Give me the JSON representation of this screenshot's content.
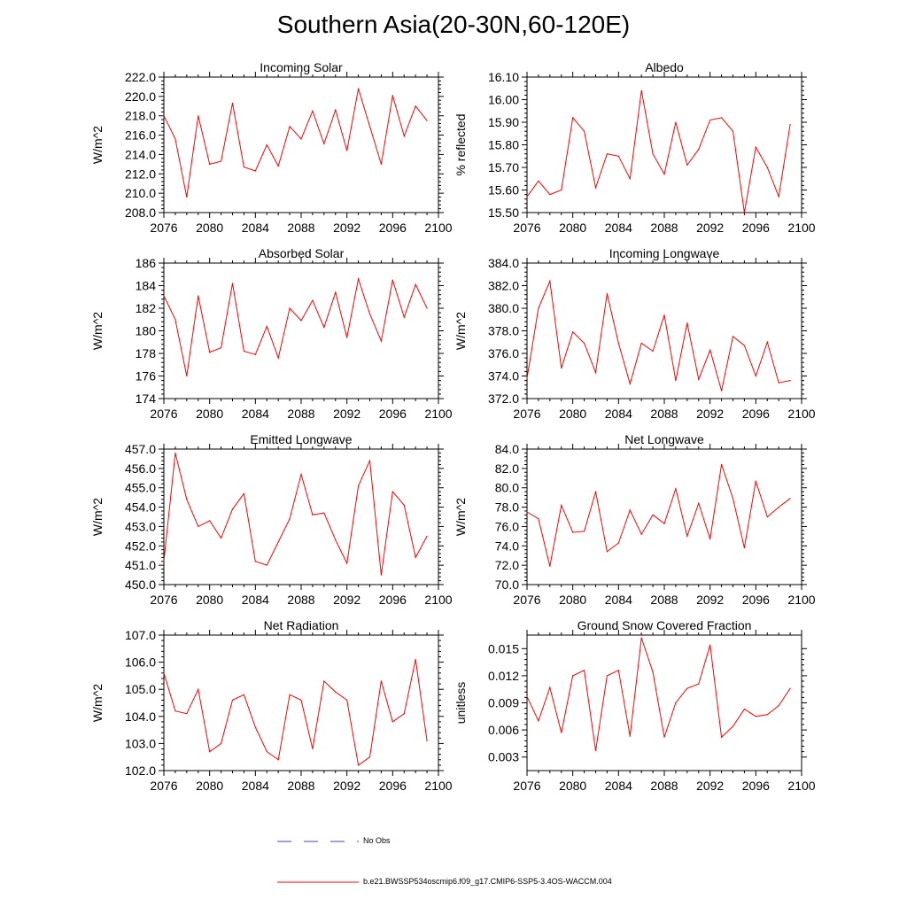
{
  "figure": {
    "title": "Southern Asia(20-30N,60-120E)"
  },
  "legend": {
    "obs_label": "No Obs",
    "obs_color": "#4040c0",
    "model_label": "b.e21.BWSSP534oscmip6.f09_g17.CMIP6-SSP5-3.4OS-WACCM.004",
    "model_color": "#ff0000"
  },
  "chart_data": [
    {
      "type": "line",
      "title": "Incoming Solar",
      "xlabel": "",
      "ylabel": "W/m^2",
      "xlim": [
        2076,
        2100
      ],
      "ylim": [
        208,
        222
      ],
      "yticks": [
        208,
        210,
        212,
        214,
        216,
        218,
        220,
        222
      ],
      "ytick_labels": [
        "208.0",
        "210.0",
        "212.0",
        "214.0",
        "216.0",
        "218.0",
        "220.0",
        "222.0"
      ],
      "xticks": [
        2076,
        2080,
        2084,
        2088,
        2092,
        2096,
        2100
      ],
      "x": [
        2076,
        2077,
        2078,
        2079,
        2080,
        2081,
        2082,
        2083,
        2084,
        2085,
        2086,
        2087,
        2088,
        2089,
        2090,
        2091,
        2092,
        2093,
        2094,
        2095,
        2096,
        2097,
        2098,
        2099
      ],
      "values": [
        218.0,
        215.6,
        209.6,
        218.0,
        213.0,
        213.3,
        219.3,
        212.7,
        212.3,
        215.0,
        212.8,
        216.9,
        215.6,
        218.5,
        215.1,
        218.6,
        214.4,
        220.8,
        216.9,
        213.0,
        220.1,
        215.9,
        219.0,
        217.5
      ]
    },
    {
      "type": "line",
      "title": "Albedo",
      "xlabel": "",
      "ylabel": "% reflected",
      "xlim": [
        2076,
        2100
      ],
      "ylim": [
        15.5,
        16.1
      ],
      "yticks": [
        15.5,
        15.6,
        15.7,
        15.8,
        15.9,
        16.0,
        16.1
      ],
      "ytick_labels": [
        "15.50",
        "15.60",
        "15.70",
        "15.80",
        "15.90",
        "16.00",
        "16.10"
      ],
      "xticks": [
        2076,
        2080,
        2084,
        2088,
        2092,
        2096,
        2100
      ],
      "x": [
        2076,
        2077,
        2078,
        2079,
        2080,
        2081,
        2082,
        2083,
        2084,
        2085,
        2086,
        2087,
        2088,
        2089,
        2090,
        2091,
        2092,
        2093,
        2094,
        2095,
        2096,
        2097,
        2098,
        2099
      ],
      "values": [
        15.57,
        15.64,
        15.58,
        15.6,
        15.92,
        15.86,
        15.61,
        15.76,
        15.75,
        15.65,
        16.04,
        15.76,
        15.67,
        15.9,
        15.71,
        15.78,
        15.91,
        15.92,
        15.86,
        15.5,
        15.79,
        15.7,
        15.57,
        15.89
      ]
    },
    {
      "type": "line",
      "title": "Absorbed Solar",
      "xlabel": "",
      "ylabel": "W/m^2",
      "xlim": [
        2076,
        2100
      ],
      "ylim": [
        174,
        186
      ],
      "yticks": [
        174,
        176,
        178,
        180,
        182,
        184,
        186
      ],
      "ytick_labels": [
        "174",
        "176",
        "178",
        "180",
        "182",
        "184",
        "186"
      ],
      "xticks": [
        2076,
        2080,
        2084,
        2088,
        2092,
        2096,
        2100
      ],
      "x": [
        2076,
        2077,
        2078,
        2079,
        2080,
        2081,
        2082,
        2083,
        2084,
        2085,
        2086,
        2087,
        2088,
        2089,
        2090,
        2091,
        2092,
        2093,
        2094,
        2095,
        2096,
        2097,
        2098,
        2099
      ],
      "values": [
        183.1,
        181.0,
        176.0,
        183.1,
        178.1,
        178.5,
        184.2,
        178.2,
        177.9,
        180.4,
        177.6,
        182.0,
        180.9,
        182.7,
        180.3,
        183.4,
        179.4,
        184.6,
        181.5,
        179.1,
        184.5,
        181.2,
        184.1,
        182.0
      ]
    },
    {
      "type": "line",
      "title": "Incoming Longwave",
      "xlabel": "",
      "ylabel": "W/m^2",
      "xlim": [
        2076,
        2100
      ],
      "ylim": [
        372,
        384
      ],
      "yticks": [
        372,
        374,
        376,
        378,
        380,
        382,
        384
      ],
      "ytick_labels": [
        "372.0",
        "374.0",
        "376.0",
        "378.0",
        "380.0",
        "382.0",
        "384.0"
      ],
      "xticks": [
        2076,
        2080,
        2084,
        2088,
        2092,
        2096,
        2100
      ],
      "x": [
        2076,
        2077,
        2078,
        2079,
        2080,
        2081,
        2082,
        2083,
        2084,
        2085,
        2086,
        2087,
        2088,
        2089,
        2090,
        2091,
        2092,
        2093,
        2094,
        2095,
        2096,
        2097,
        2098,
        2099
      ],
      "values": [
        373.8,
        380.0,
        382.4,
        374.7,
        377.9,
        376.9,
        374.3,
        381.3,
        376.9,
        373.3,
        376.9,
        376.2,
        379.4,
        373.6,
        378.7,
        373.7,
        376.3,
        372.7,
        377.5,
        376.7,
        374.0,
        377.0,
        373.4,
        373.6
      ]
    },
    {
      "type": "line",
      "title": "Emitted Longwave",
      "xlabel": "",
      "ylabel": "W/m^2",
      "xlim": [
        2076,
        2100
      ],
      "ylim": [
        450,
        457
      ],
      "yticks": [
        450,
        451,
        452,
        453,
        454,
        455,
        456,
        457
      ],
      "ytick_labels": [
        "450.0",
        "451.0",
        "452.0",
        "453.0",
        "454.0",
        "455.0",
        "456.0",
        "457.0"
      ],
      "xticks": [
        2076,
        2080,
        2084,
        2088,
        2092,
        2096,
        2100
      ],
      "x": [
        2076,
        2077,
        2078,
        2079,
        2080,
        2081,
        2082,
        2083,
        2084,
        2085,
        2086,
        2087,
        2088,
        2089,
        2090,
        2091,
        2092,
        2093,
        2094,
        2095,
        2096,
        2097,
        2098,
        2099
      ],
      "values": [
        451.2,
        456.8,
        454.4,
        453.0,
        453.3,
        452.4,
        453.9,
        454.7,
        451.2,
        451.0,
        452.2,
        453.4,
        455.7,
        453.6,
        453.7,
        452.3,
        451.1,
        455.1,
        456.4,
        450.5,
        454.8,
        454.1,
        451.4,
        452.5
      ]
    },
    {
      "type": "line",
      "title": "Net Longwave",
      "xlabel": "",
      "ylabel": "W/m^2",
      "xlim": [
        2076,
        2100
      ],
      "ylim": [
        70,
        84
      ],
      "yticks": [
        70,
        72,
        74,
        76,
        78,
        80,
        82,
        84
      ],
      "ytick_labels": [
        "70.0",
        "72.0",
        "74.0",
        "76.0",
        "78.0",
        "80.0",
        "82.0",
        "84.0"
      ],
      "xticks": [
        2076,
        2080,
        2084,
        2088,
        2092,
        2096,
        2100
      ],
      "x": [
        2076,
        2077,
        2078,
        2079,
        2080,
        2081,
        2082,
        2083,
        2084,
        2085,
        2086,
        2087,
        2088,
        2089,
        2090,
        2091,
        2092,
        2093,
        2094,
        2095,
        2096,
        2097,
        2098,
        2099
      ],
      "values": [
        77.5,
        76.8,
        71.9,
        78.2,
        75.4,
        75.5,
        79.6,
        73.4,
        74.3,
        77.7,
        75.2,
        77.2,
        76.3,
        79.9,
        75.0,
        78.4,
        74.7,
        82.4,
        78.9,
        73.8,
        80.7,
        77.0,
        78.0,
        78.9
      ]
    },
    {
      "type": "line",
      "title": "Net Radiation",
      "xlabel": "",
      "ylabel": "W/m^2",
      "xlim": [
        2076,
        2100
      ],
      "ylim": [
        102,
        107
      ],
      "yticks": [
        102,
        103,
        104,
        105,
        106,
        107
      ],
      "ytick_labels": [
        "102.0",
        "103.0",
        "104.0",
        "105.0",
        "106.0",
        "107.0"
      ],
      "xticks": [
        2076,
        2080,
        2084,
        2088,
        2092,
        2096,
        2100
      ],
      "x": [
        2076,
        2077,
        2078,
        2079,
        2080,
        2081,
        2082,
        2083,
        2084,
        2085,
        2086,
        2087,
        2088,
        2089,
        2090,
        2091,
        2092,
        2093,
        2094,
        2095,
        2096,
        2097,
        2098,
        2099
      ],
      "values": [
        105.6,
        104.2,
        104.1,
        105.0,
        102.7,
        103.0,
        104.6,
        104.8,
        103.6,
        102.7,
        102.4,
        104.8,
        104.6,
        102.8,
        105.3,
        104.9,
        104.6,
        102.2,
        102.5,
        105.3,
        103.8,
        104.1,
        106.1,
        103.1
      ]
    },
    {
      "type": "line",
      "title": "Ground Snow Covered Fraction",
      "xlabel": "",
      "ylabel": "unitless",
      "xlim": [
        2076,
        2100
      ],
      "ylim": [
        0.0015,
        0.0165
      ],
      "yticks": [
        0.003,
        0.006,
        0.009,
        0.012,
        0.015
      ],
      "ytick_labels": [
        "0.003",
        "0.006",
        "0.009",
        "0.012",
        "0.015"
      ],
      "xticks": [
        2076,
        2080,
        2084,
        2088,
        2092,
        2096,
        2100
      ],
      "x": [
        2076,
        2077,
        2078,
        2079,
        2080,
        2081,
        2082,
        2083,
        2084,
        2085,
        2086,
        2087,
        2088,
        2089,
        2090,
        2091,
        2092,
        2093,
        2094,
        2095,
        2096,
        2097,
        2098,
        2099
      ],
      "values": [
        0.0097,
        0.007,
        0.0107,
        0.0057,
        0.012,
        0.0126,
        0.0037,
        0.012,
        0.0126,
        0.0053,
        0.0162,
        0.0124,
        0.0052,
        0.009,
        0.0106,
        0.0111,
        0.0154,
        0.0052,
        0.0064,
        0.0083,
        0.0075,
        0.0077,
        0.0087,
        0.0106
      ]
    }
  ]
}
